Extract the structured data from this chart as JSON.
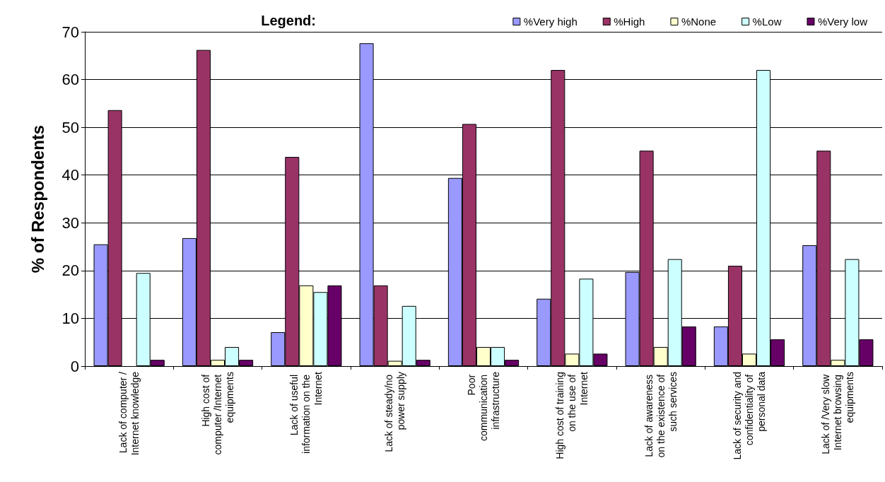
{
  "chart_data": {
    "type": "bar",
    "ylabel": "% of Respondents",
    "legend_title": "Legend:",
    "legend": "top right",
    "categories": [
      "Lack of computer /Internet knowledge",
      "High cost of computer /Internet equipments",
      "Lack of useful information on the Internet",
      "Lack of steady/no power supply",
      "Poor communication infrastructure",
      "High cost of training on the use of Internet",
      "Lack of awareness on the existence of such services",
      "Lack of security and confidentiality of personal data",
      "Lack of /Very slow Internet browsing equipments"
    ],
    "series": [
      {
        "name": "%Very high",
        "color": "#9999ff",
        "values": [
          25.5,
          26.8,
          7.1,
          67.6,
          39.4,
          14.1,
          19.7,
          8.3,
          25.3
        ]
      },
      {
        "name": "%High",
        "color": "#993366",
        "values": [
          53.6,
          66.2,
          43.8,
          16.9,
          50.7,
          62.0,
          45.1,
          21.0,
          45.1
        ]
      },
      {
        "name": "%None",
        "color": "#ffffcc",
        "values": [
          null,
          1.3,
          16.9,
          1.1,
          4.0,
          2.6,
          4.0,
          2.6,
          1.3
        ]
      },
      {
        "name": "%Low",
        "color": "#ccffff",
        "values": [
          19.5,
          4.0,
          15.5,
          12.6,
          4.0,
          18.3,
          22.4,
          62.0,
          22.4
        ]
      },
      {
        "name": "%Very low",
        "color": "#660066",
        "values": [
          1.3,
          1.3,
          16.9,
          1.3,
          1.3,
          2.6,
          8.3,
          5.6,
          5.6
        ]
      }
    ],
    "ylim": [
      0,
      70
    ],
    "yticks": [
      0,
      10,
      20,
      30,
      40,
      50,
      60,
      70
    ],
    "grid": "y"
  }
}
